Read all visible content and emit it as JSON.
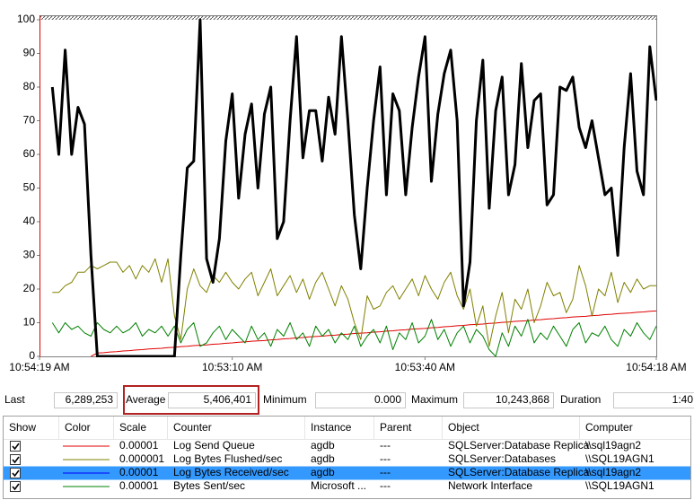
{
  "chart_data": {
    "type": "line",
    "categories": [
      "10:54:19 AM",
      null,
      null,
      null,
      null,
      null,
      null,
      null,
      null,
      null,
      null,
      null,
      null,
      null,
      null,
      null,
      null,
      null,
      null,
      null,
      null,
      null,
      null,
      null,
      null,
      null,
      null,
      null,
      null,
      null,
      "10:53:10 AM",
      null,
      null,
      null,
      null,
      null,
      null,
      null,
      null,
      null,
      null,
      null,
      null,
      null,
      null,
      null,
      null,
      null,
      null,
      null,
      null,
      null,
      null,
      null,
      null,
      null,
      null,
      null,
      null,
      null,
      "10:53:40 AM",
      null,
      null,
      null,
      null,
      null,
      null,
      null,
      null,
      null,
      null,
      null,
      null,
      null,
      null,
      null,
      null,
      null,
      null,
      null,
      null,
      null,
      null,
      null,
      null,
      null,
      null,
      null,
      null,
      null,
      null,
      null,
      null,
      null,
      null,
      null,
      "10:54:18 AM"
    ],
    "ylim": [
      0,
      100
    ],
    "yticks": [
      0,
      10,
      20,
      30,
      40,
      50,
      60,
      70,
      80,
      90,
      100
    ],
    "grid": false,
    "highlight_color": "#000000",
    "series": [
      {
        "color": "#e00000",
        "values": [
          null,
          null,
          null,
          null,
          null,
          null,
          null,
          null,
          0,
          1.0,
          1.1,
          1.3,
          1.4,
          1.6,
          1.7,
          1.9,
          2.0,
          2.2,
          2.3,
          2.4,
          2.6,
          2.7,
          2.9,
          3.0,
          3.2,
          3.3,
          3.4,
          3.6,
          3.7,
          3.9,
          4.0,
          4.2,
          4.3,
          4.5,
          4.6,
          4.7,
          4.9,
          5.0,
          5.2,
          5.3,
          5.5,
          5.6,
          5.8,
          5.9,
          6.0,
          6.2,
          6.3,
          6.5,
          6.6,
          6.8,
          6.9,
          7.0,
          7.2,
          7.3,
          7.5,
          7.6,
          7.8,
          7.9,
          8.1,
          8.2,
          8.3,
          8.5,
          8.6,
          8.8,
          8.9,
          9.1,
          9.2,
          9.4,
          9.5,
          9.6,
          9.8,
          9.9,
          10.1,
          10.2,
          10.4,
          10.5,
          10.6,
          10.8,
          10.9,
          11.1,
          11.2,
          11.4,
          11.5,
          11.7,
          11.8,
          11.9,
          12.1,
          12.2,
          12.4,
          12.5,
          12.7,
          12.8,
          12.9,
          13.1,
          13.2,
          13.4,
          13.5
        ]
      },
      {
        "color": "#808000",
        "values": [
          null,
          null,
          19,
          19,
          21,
          22,
          25,
          25,
          27,
          26,
          27,
          28,
          28,
          25,
          27,
          23,
          27,
          25,
          29,
          22,
          29,
          12,
          5,
          20,
          26,
          21,
          19,
          24,
          22,
          25,
          22,
          20,
          23,
          25,
          18,
          22,
          26,
          18,
          21,
          24,
          19,
          23,
          17,
          22,
          25,
          20,
          15,
          21,
          17,
          10,
          5,
          18,
          14,
          15,
          19,
          21,
          17,
          20,
          23,
          18,
          24,
          20,
          17,
          22,
          25,
          18,
          14,
          20,
          9,
          15,
          3,
          12,
          19,
          7,
          17,
          14,
          20,
          10,
          15,
          22,
          18,
          19,
          13,
          17,
          27,
          21,
          12,
          20,
          18,
          25,
          16,
          22,
          19,
          23,
          20,
          21,
          21
        ]
      },
      {
        "color": "#0000ff",
        "values": [
          null,
          null,
          80,
          60,
          91,
          60,
          74,
          69,
          30,
          0,
          0,
          0,
          0,
          0,
          0,
          0,
          0,
          0,
          0,
          0,
          0,
          0,
          30,
          56,
          58,
          100,
          29,
          22,
          35,
          64,
          78,
          47,
          66,
          75,
          50,
          72,
          80,
          35,
          40,
          70,
          95,
          59,
          73,
          73,
          58,
          77,
          66,
          95,
          70,
          42,
          26,
          50,
          70,
          86,
          48,
          78,
          73,
          48,
          68,
          83,
          95,
          52,
          72,
          84,
          91,
          70,
          15,
          28,
          70,
          88,
          44,
          73,
          83,
          48,
          57,
          87,
          62,
          76,
          78,
          45,
          48,
          80,
          79,
          83,
          68,
          62,
          70,
          59,
          48,
          50,
          30,
          62,
          84,
          55,
          48,
          92,
          76
        ]
      },
      {
        "color": "#008000",
        "values": [
          null,
          null,
          10,
          7,
          10,
          8,
          9,
          7,
          6,
          10,
          8,
          7,
          9,
          7,
          8,
          10,
          6,
          8,
          7,
          9,
          6,
          9,
          4,
          8,
          10,
          3,
          4,
          7,
          9,
          5,
          8,
          6,
          4,
          9,
          5,
          7,
          3,
          8,
          6,
          10,
          5,
          7,
          3,
          9,
          6,
          8,
          4,
          7,
          5,
          9,
          3,
          6,
          8,
          4,
          9,
          2,
          7,
          5,
          10,
          4,
          6,
          11,
          5,
          8,
          3,
          7,
          9,
          4,
          8,
          6,
          2,
          0,
          7,
          3,
          9,
          6,
          11,
          4,
          7,
          5,
          9,
          6,
          3,
          8,
          10,
          4,
          7,
          6,
          9,
          5,
          3,
          8,
          6,
          10,
          7,
          5,
          9
        ]
      }
    ]
  },
  "stats": {
    "highlighted": 1,
    "items": [
      {
        "label": "Last",
        "value": "6,289,253"
      },
      {
        "label": "Average",
        "value": "5,406,401"
      },
      {
        "label": "Minimum",
        "value": "0.000"
      },
      {
        "label": "Maximum",
        "value": "10,243,868"
      },
      {
        "label": "Duration",
        "value": "1:40"
      }
    ]
  },
  "table": {
    "columns": [
      "Show",
      "Color",
      "Scale",
      "Counter",
      "Instance",
      "Parent",
      "Object",
      "Computer"
    ],
    "selected": 2,
    "checked": [
      true,
      true,
      true,
      true
    ],
    "rows": [
      [
        "0.00001",
        "Log Send Queue",
        "agdb",
        "---",
        "SQLServer:Database Replica",
        "\\\\sql19agn2"
      ],
      [
        "0.000001",
        "Log Bytes Flushed/sec",
        "agdb",
        "---",
        "SQLServer:Databases",
        "\\\\SQL19AGN1"
      ],
      [
        "0.00001",
        "Log Bytes Received/sec",
        "agdb",
        "---",
        "SQLServer:Database Replica",
        "\\\\sql19agn2"
      ],
      [
        "0.00001",
        "Bytes Sent/sec",
        "Microsoft ...",
        "---",
        "Network Interface",
        "\\\\SQL19AGN1"
      ]
    ]
  }
}
